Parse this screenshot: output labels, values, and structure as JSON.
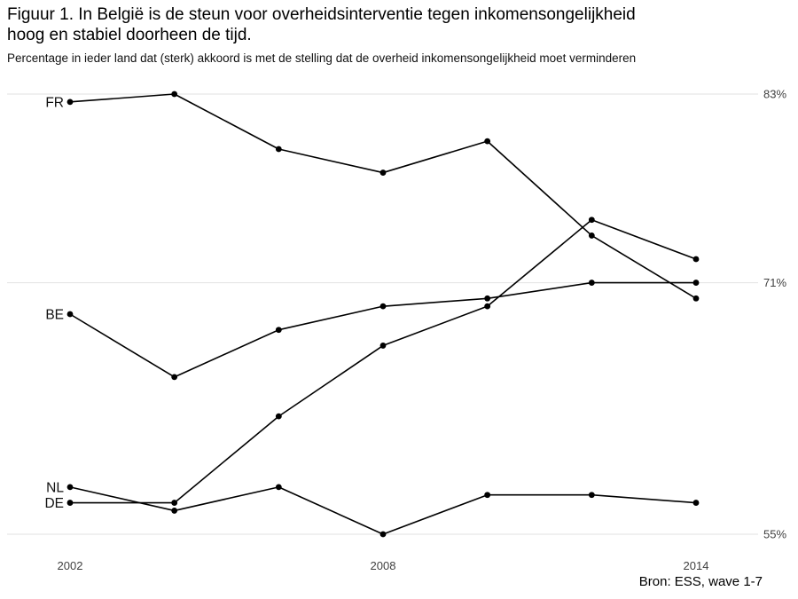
{
  "header": {
    "title_lines": [
      "Figuur 1. In België is de steun voor overheidsinterventie tegen inkomensongelijkheid",
      "hoog en stabiel doorheen de tijd."
    ],
    "subtitle": "Percentage in ieder land dat (sterk) akkoord is met de stelling dat de overheid inkomensongelijkheid moet verminderen"
  },
  "colors": {
    "line": "#000000",
    "point": "#000000",
    "grid": "#e2e2e2",
    "axis_text": "#404040",
    "background": "#ffffff"
  },
  "chart_data": {
    "type": "line",
    "title": "Figuur 1. In België is de steun voor overheidsinterventie tegen inkomensongelijkheid hoog en stabiel doorheen de tijd.",
    "subtitle": "Percentage in ieder land dat (sterk) akkoord is met de stelling dat de overheid inkomensongelijkheid moet verminderen",
    "x": [
      2002,
      2004,
      2006,
      2008,
      2010,
      2012,
      2014
    ],
    "x_tick_values": [
      2002,
      2008,
      2014
    ],
    "x_tick_labels": [
      "2002",
      "2008",
      "2014"
    ],
    "y_tick_values": [
      83,
      71,
      55
    ],
    "y_tick_labels": [
      "83%",
      "71%",
      "55%"
    ],
    "ylim": [
      54,
      84
    ],
    "grid": "horizontal-only",
    "legend_position": "inline-left-of-first-point",
    "series": [
      {
        "name": "FR",
        "values": [
          82.5,
          83,
          79.5,
          78,
          80,
          74,
          70
        ]
      },
      {
        "name": "BE",
        "values": [
          69,
          65,
          68,
          69.5,
          70,
          71,
          71
        ]
      },
      {
        "name": "NL",
        "values": [
          58,
          56.5,
          58,
          55,
          57.5,
          57.5,
          57
        ]
      },
      {
        "name": "DE",
        "values": [
          57,
          57,
          62.5,
          67,
          69.5,
          75,
          72.5
        ]
      }
    ],
    "source": "Bron: ESS, wave 1-7"
  }
}
